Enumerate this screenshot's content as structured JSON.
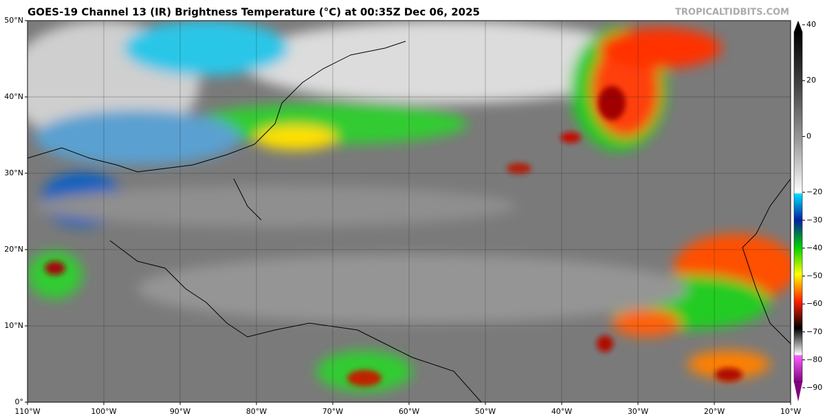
{
  "map": {
    "title": "GOES-19 Channel 13 (IR) Brightness Temperature (°C) at 00:35Z Dec 06, 2025",
    "source": "TROPICALTIDBITS.COM",
    "lat_range": [
      0,
      50
    ],
    "lon_range": [
      -110,
      -10
    ],
    "lat_labels": [
      {
        "value": 50,
        "label": "50°N"
      },
      {
        "value": 40,
        "label": "40°N"
      },
      {
        "value": 30,
        "label": "30°N"
      },
      {
        "value": 20,
        "label": "20°N"
      },
      {
        "value": 10,
        "label": "10°N"
      },
      {
        "value": 0,
        "label": "0°"
      }
    ],
    "lon_labels": [
      {
        "value": -110,
        "label": "110°W"
      },
      {
        "value": -100,
        "label": "100°W"
      },
      {
        "value": -90,
        "label": "90°W"
      },
      {
        "value": -80,
        "label": "80°W"
      },
      {
        "value": -70,
        "label": "70°W"
      },
      {
        "value": -60,
        "label": "60°W"
      },
      {
        "value": -50,
        "label": "50°W"
      },
      {
        "value": -40,
        "label": "40°W"
      },
      {
        "value": -30,
        "label": "30°W"
      },
      {
        "value": -20,
        "label": "20°W"
      },
      {
        "value": -10,
        "label": "10°W"
      }
    ],
    "colorbar": {
      "range": [
        -90,
        40
      ],
      "ticks": [
        {
          "value": 40,
          "label": "40"
        },
        {
          "value": 20,
          "label": "20"
        },
        {
          "value": 0,
          "label": "0"
        },
        {
          "value": -20,
          "label": "−20"
        },
        {
          "value": -30,
          "label": "−30"
        },
        {
          "value": -40,
          "label": "−40"
        },
        {
          "value": -50,
          "label": "−50"
        },
        {
          "value": -60,
          "label": "−60"
        },
        {
          "value": -70,
          "label": "−70"
        },
        {
          "value": -80,
          "label": "−80"
        },
        {
          "value": -90,
          "label": "−90"
        }
      ]
    }
  }
}
